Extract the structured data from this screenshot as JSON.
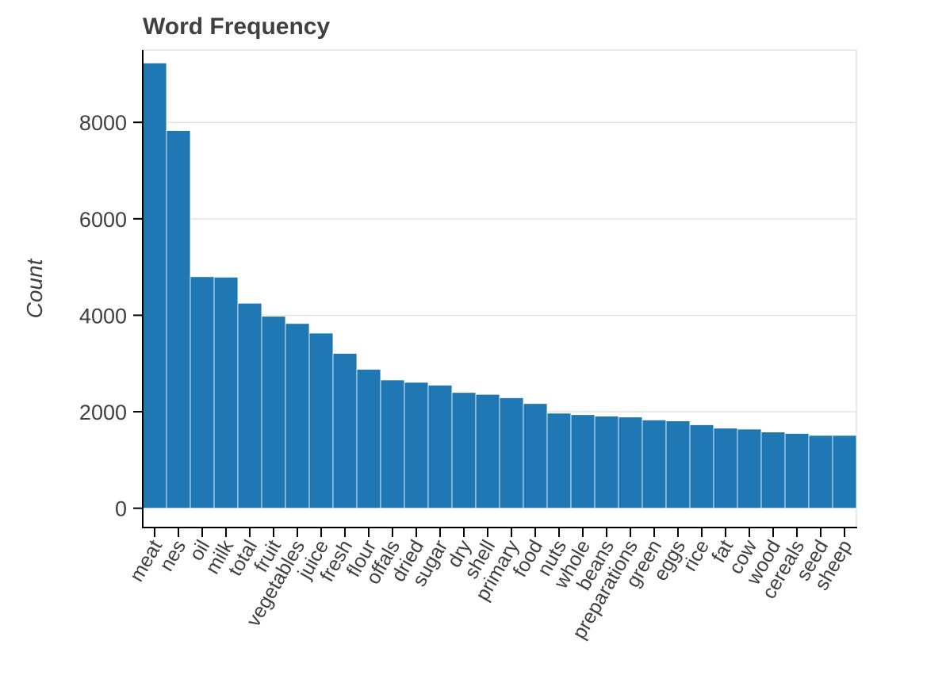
{
  "chart_data": {
    "type": "bar",
    "title": "Word Frequency",
    "xlabel": "",
    "ylabel": "Count",
    "ylim": [
      -400,
      9500
    ],
    "yticks": [
      0,
      2000,
      4000,
      6000,
      8000
    ],
    "ytick_labels": [
      "0",
      "2000",
      "4000",
      "6000",
      "8000"
    ],
    "grid": true,
    "bar_color": "#1f77b4",
    "categories": [
      "meat",
      "nes",
      "oil",
      "milk",
      "total",
      "fruit",
      "vegetables",
      "juice",
      "fresh",
      "flour",
      "offals",
      "dried",
      "sugar",
      "dry",
      "shell",
      "primary",
      "food",
      "nuts",
      "whole",
      "beans",
      "preparations",
      "green",
      "eggs",
      "rice",
      "fat",
      "cow",
      "wood",
      "cereals",
      "seed",
      "sheep"
    ],
    "values": [
      9230,
      7830,
      4800,
      4790,
      4250,
      3980,
      3830,
      3630,
      3210,
      2880,
      2660,
      2610,
      2550,
      2400,
      2360,
      2290,
      2170,
      1970,
      1940,
      1910,
      1890,
      1830,
      1810,
      1730,
      1660,
      1640,
      1580,
      1550,
      1510,
      1510
    ]
  }
}
